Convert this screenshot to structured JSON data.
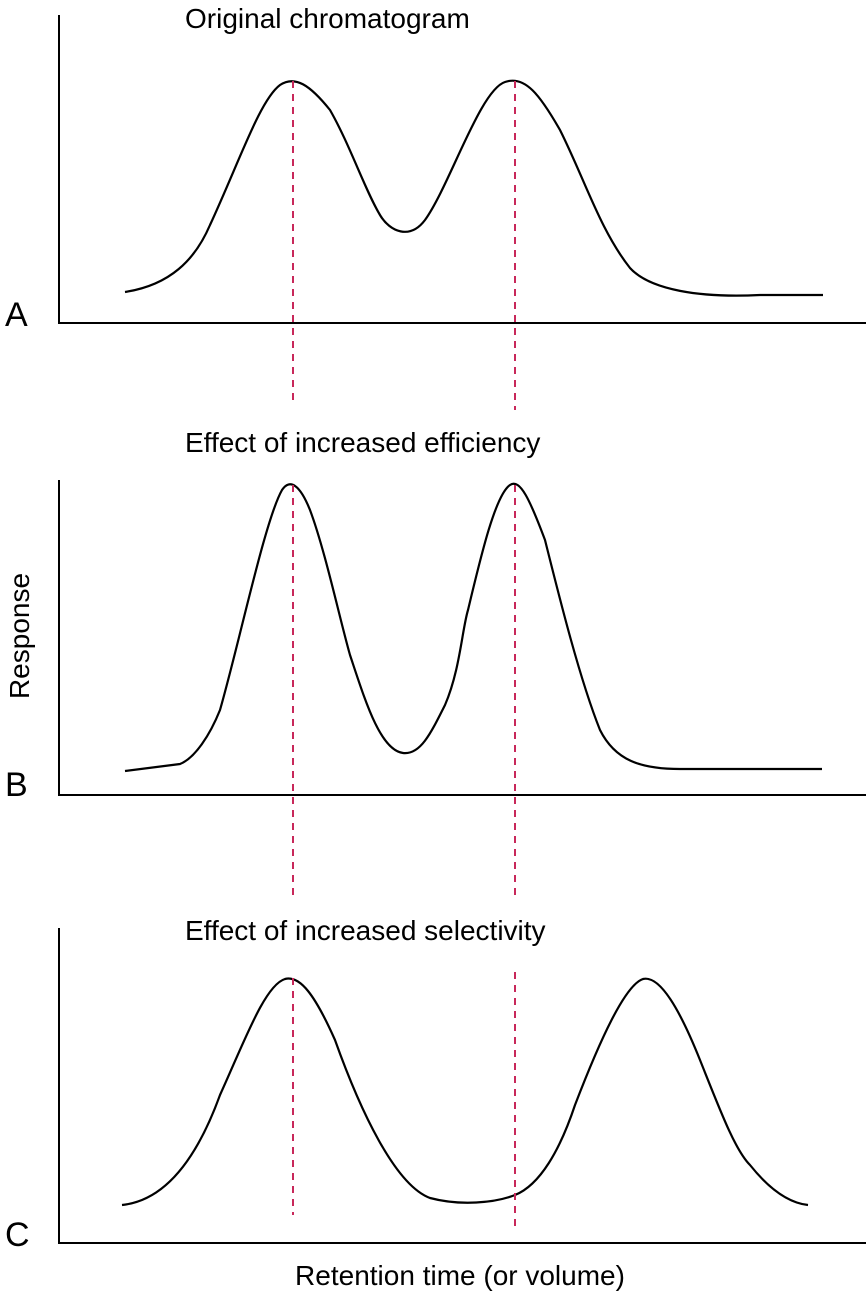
{
  "colors": {
    "curve": "#000000",
    "reference_line": "#c8285a",
    "axis": "#000000"
  },
  "y_axis_label": "Response",
  "x_axis_label": "Retention time (or volume)",
  "panels": [
    {
      "letter": "A",
      "title": "Original chromatogram"
    },
    {
      "letter": "B",
      "title": "Effect of increased efficiency"
    },
    {
      "letter": "C",
      "title": "Effect of increased selectivity"
    }
  ]
}
